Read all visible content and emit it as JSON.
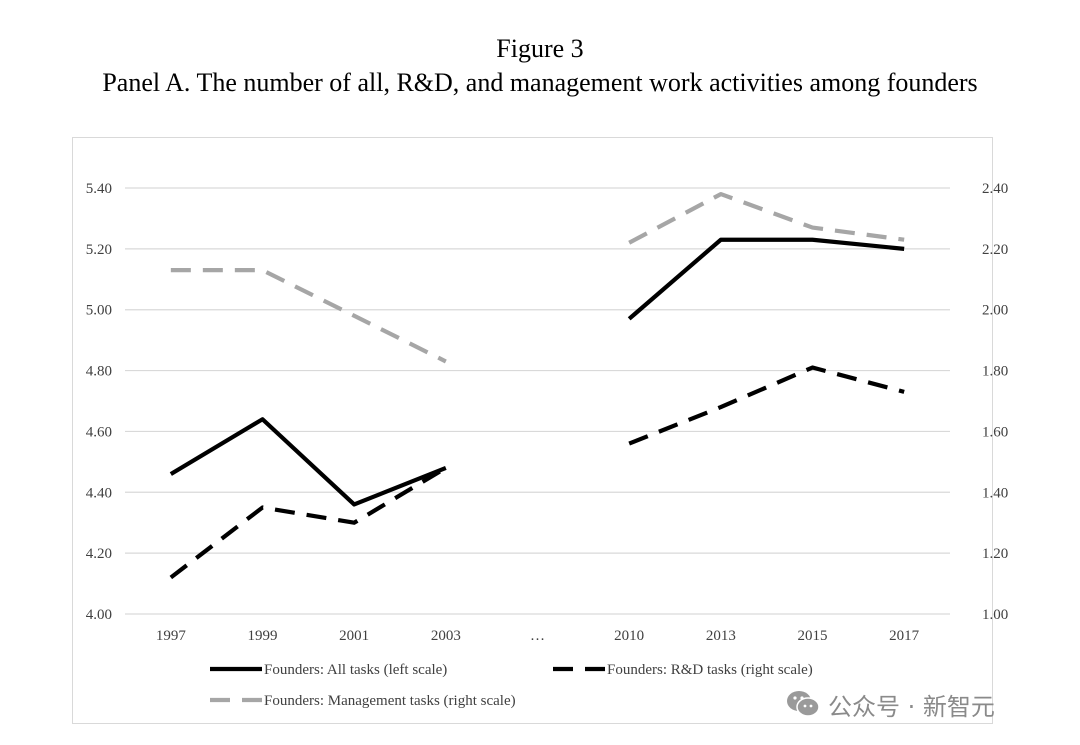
{
  "figure": {
    "label": "Figure 3",
    "title": "Panel A. The number of all, R&D, and management work activities among founders"
  },
  "watermark": {
    "text": "公众号 · 新智元",
    "icon": "wechat-icon"
  },
  "chart_data": {
    "type": "line",
    "title": "Panel A. The number of all, R&D, and management work activities among founders",
    "categories": [
      "1997",
      "1999",
      "2001",
      "2003",
      "…",
      "2010",
      "2013",
      "2015",
      "2017"
    ],
    "y_left": {
      "ylim": [
        4.0,
        5.4
      ],
      "ticks": [
        "4.00",
        "4.20",
        "4.40",
        "4.60",
        "4.80",
        "5.00",
        "5.20",
        "5.40"
      ]
    },
    "y_right": {
      "ylim": [
        1.0,
        2.4
      ],
      "ticks": [
        "1.00",
        "1.20",
        "1.40",
        "1.60",
        "1.80",
        "2.00",
        "2.20",
        "2.40"
      ]
    },
    "grid": true,
    "legend_position": "bottom",
    "series": [
      {
        "name": "Founders: All tasks (left scale)",
        "axis": "left",
        "style": "solid",
        "color": "#000000",
        "values": [
          4.46,
          4.64,
          4.36,
          4.48,
          null,
          4.97,
          5.23,
          5.23,
          5.2
        ]
      },
      {
        "name": "Founders: R&D tasks (right scale)",
        "axis": "right",
        "style": "dashed",
        "color": "#000000",
        "values": [
          1.12,
          1.35,
          1.3,
          1.48,
          null,
          1.56,
          1.68,
          1.81,
          1.73
        ]
      },
      {
        "name": "Founders: Management tasks (right scale)",
        "axis": "right",
        "style": "dashed",
        "color": "#a6a6a6",
        "values": [
          2.13,
          2.13,
          1.98,
          1.83,
          null,
          2.22,
          2.38,
          2.27,
          2.23
        ]
      }
    ]
  }
}
